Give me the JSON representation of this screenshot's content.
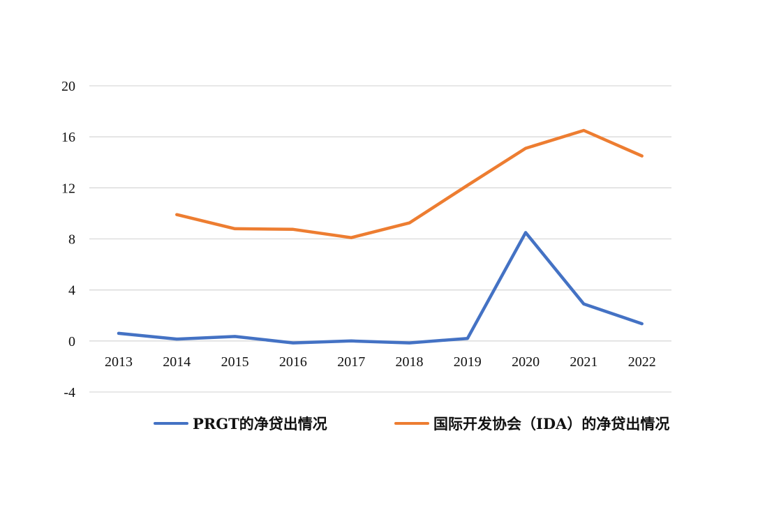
{
  "chart_data": {
    "type": "line",
    "title": "",
    "xlabel": "",
    "ylabel": "",
    "categories": [
      "2013",
      "2014",
      "2015",
      "2016",
      "2017",
      "2018",
      "2019",
      "2020",
      "2021",
      "2022"
    ],
    "yticks": [
      "20",
      "16",
      "12",
      "8",
      "4",
      "0",
      "-4"
    ],
    "ylim": [
      -4,
      20
    ],
    "grid": true,
    "legend_position": "bottom",
    "series": [
      {
        "name": "PRGT的净贷出情况",
        "color": "#4472C4",
        "values": [
          0.6,
          0.15,
          0.35,
          -0.15,
          0.0,
          -0.15,
          0.2,
          8.5,
          2.9,
          1.35
        ]
      },
      {
        "name": "国际开发协会（IDA）的净贷出情况",
        "color": "#ED7D31",
        "values": [
          null,
          9.9,
          8.8,
          8.75,
          8.1,
          9.25,
          12.2,
          15.1,
          16.5,
          14.5
        ]
      }
    ]
  }
}
